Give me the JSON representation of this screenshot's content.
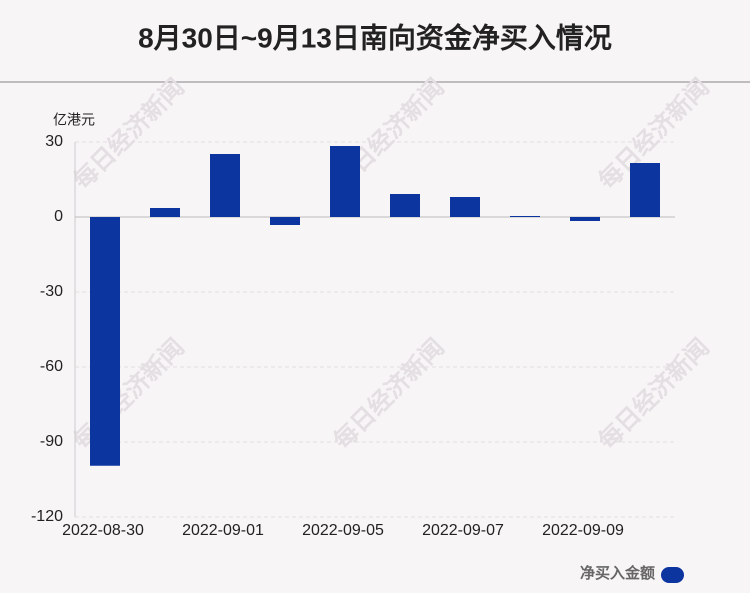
{
  "chart_data": {
    "type": "bar",
    "title": "8月30日~9月13日南向资金净买入情况",
    "y_axis_label": "亿港元",
    "watermark": "每日经济新闻",
    "categories": [
      "2022-08-30",
      null,
      "2022-09-01",
      null,
      "2022-09-05",
      null,
      "2022-09-07",
      null,
      "2022-09-09",
      null
    ],
    "series": [
      {
        "name": "净买入金额",
        "color": "#0d35a0",
        "values": [
          -99.5,
          3.6,
          25.2,
          -3.2,
          28.4,
          9.2,
          8.0,
          0.4,
          -1.6,
          21.6
        ]
      }
    ],
    "ylim": [
      -120,
      30
    ],
    "yticks": [
      30,
      0,
      -30,
      -60,
      -90,
      -120
    ],
    "grid": true,
    "legend": "bottom-right"
  }
}
